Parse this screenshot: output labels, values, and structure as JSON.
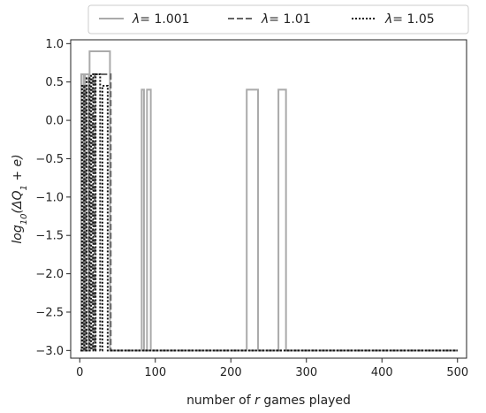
{
  "chart_data": {
    "type": "line",
    "xlabel_parts": [
      "number of ",
      "r",
      " games played"
    ],
    "ylabel_parts": [
      "log",
      "10",
      "(ΔQ",
      "1",
      " + e)"
    ],
    "xlim": [
      -12,
      512
    ],
    "ylim": [
      -3.1,
      1.05
    ],
    "xticks": [
      0,
      100,
      200,
      300,
      400,
      500
    ],
    "xtick_labels": [
      "0",
      "100",
      "200",
      "300",
      "400",
      "500"
    ],
    "yticks": [
      1.0,
      0.5,
      0.0,
      -0.5,
      -1.0,
      -1.5,
      -2.0,
      -2.5,
      -3.0
    ],
    "ytick_labels": [
      "1.0",
      "0.5",
      "0.0",
      "−0.5",
      "−1.0",
      "−1.5",
      "−2.0",
      "−2.5",
      "−3.0"
    ],
    "legend_position": "top-center, above plot",
    "series": [
      {
        "name": "λ = 1.001",
        "legend_label": "= 1.001",
        "color": "#aaaaaa",
        "dash": "solid",
        "x": [
          1,
          2,
          2,
          5,
          5,
          7,
          7,
          12,
          12,
          13,
          13,
          40,
          40,
          43,
          43,
          82,
          82,
          85,
          85,
          89,
          89,
          94,
          94,
          221,
          221,
          236,
          236,
          263,
          263,
          273,
          273,
          500
        ],
        "y": [
          -3.0,
          -3.0,
          0.6,
          0.6,
          -3.0,
          -3.0,
          0.6,
          0.6,
          -3.0,
          -3.0,
          0.9,
          0.9,
          -3.0,
          -3.0,
          -3.0,
          -3.0,
          0.4,
          0.4,
          -3.0,
          -3.0,
          0.4,
          0.4,
          -3.0,
          -3.0,
          0.4,
          0.4,
          -3.0,
          -3.0,
          0.4,
          0.4,
          -3.0,
          -3.0
        ]
      },
      {
        "name": "λ = 1.01",
        "legend_label": "= 1.01",
        "color": "#666666",
        "dash": "dashed",
        "x": [
          1,
          5,
          5,
          8,
          8,
          12,
          12,
          17,
          17,
          20,
          20,
          41,
          41,
          45,
          45,
          500
        ],
        "y": [
          -3.0,
          -3.0,
          0.45,
          0.45,
          -3.0,
          -3.0,
          0.55,
          0.55,
          -3.0,
          -3.0,
          0.6,
          0.6,
          -3.0,
          -3.0,
          -3.0,
          -3.0
        ]
      },
      {
        "name": "λ = 1.05",
        "legend_label": "= 1.05",
        "color": "#111111",
        "dash": "dotted",
        "x": [
          1,
          3,
          3,
          6,
          6,
          9,
          9,
          13,
          13,
          15,
          15,
          18,
          18,
          21,
          21,
          27,
          27,
          30,
          30,
          37,
          37,
          47,
          47,
          500
        ],
        "y": [
          -3.0,
          -3.0,
          0.45,
          0.45,
          -3.0,
          -3.0,
          0.55,
          0.55,
          -3.0,
          -3.0,
          0.6,
          0.6,
          -3.0,
          -3.0,
          0.6,
          0.6,
          -3.0,
          -3.0,
          0.45,
          0.45,
          -3.0,
          -3.0,
          -3.0,
          -3.0
        ]
      }
    ]
  }
}
